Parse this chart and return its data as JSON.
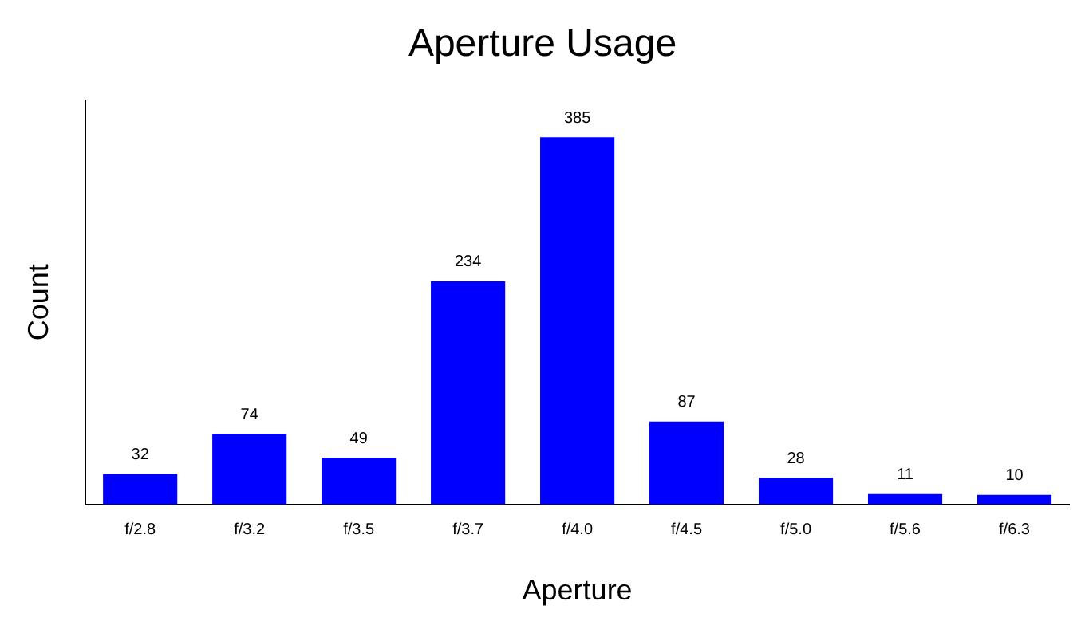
{
  "chart_data": {
    "type": "bar",
    "title": "Aperture Usage",
    "xlabel": "Aperture",
    "ylabel": "Count",
    "categories": [
      "f/2.8",
      "f/3.2",
      "f/3.5",
      "f/3.7",
      "f/4.0",
      "f/4.5",
      "f/5.0",
      "f/5.6",
      "f/6.3"
    ],
    "values": [
      32,
      74,
      49,
      234,
      385,
      87,
      28,
      11,
      10
    ],
    "color": "#0000ff",
    "ylim": [
      0,
      424
    ],
    "tick_labels": "x",
    "data_labels": true,
    "grid": false,
    "legend": false
  }
}
